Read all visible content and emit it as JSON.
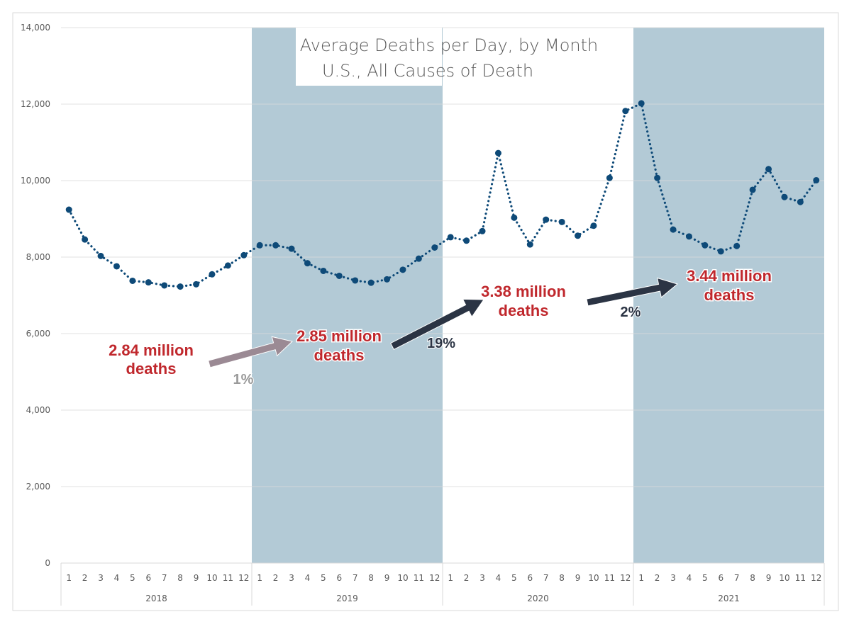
{
  "chart_data": {
    "type": "line",
    "title": [
      "Average Deaths per Day, by Month",
      "U.S., All Causes of Death"
    ],
    "xlabel": "",
    "ylabel": "",
    "ylim": [
      0,
      14000
    ],
    "yticks": [
      "0",
      "2,000",
      "4,000",
      "6,000",
      "8,000",
      "10,000",
      "12,000",
      "14,000"
    ],
    "grid": true,
    "legend": "none",
    "years": [
      "2018",
      "2019",
      "2020",
      "2021"
    ],
    "months": [
      "1",
      "2",
      "3",
      "4",
      "5",
      "6",
      "7",
      "8",
      "9",
      "10",
      "11",
      "12"
    ],
    "shaded_years": [
      "2019",
      "2021"
    ],
    "series": [
      {
        "values": [
          9240,
          8460,
          8030,
          7760,
          7380,
          7340,
          7260,
          7230,
          7290,
          7550,
          7780,
          8050,
          8310,
          8310,
          8220,
          7840,
          7640,
          7510,
          7390,
          7330,
          7420,
          7670,
          7960,
          8250,
          8520,
          8430,
          8680,
          10720,
          9030,
          8330,
          8980,
          8920,
          8560,
          8820,
          10070,
          11820,
          12020,
          10070,
          8720,
          8540,
          8310,
          8150,
          8290,
          9760,
          10300,
          9570,
          9440,
          10010
        ]
      }
    ],
    "annotations": [
      {
        "line1": "2.84 million",
        "line2": "deaths"
      },
      {
        "line1": "2.85 million",
        "line2": "deaths"
      },
      {
        "line1": "3.38 million",
        "line2": "deaths"
      },
      {
        "line1": "3.44 million",
        "line2": "deaths"
      }
    ],
    "changes": [
      "1%",
      "19%",
      "2%"
    ]
  },
  "colors": {
    "line": "#0e4a78",
    "shade": "#b3cad6",
    "annotation": "#c0282d",
    "arrow_dark": "#2b3444",
    "arrow_light": "#9b8a94",
    "pct_light": "#9a9a9a",
    "pct_dark": "#2b3444"
  }
}
